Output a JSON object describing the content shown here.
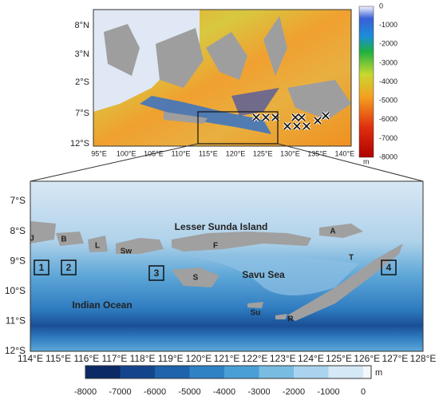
{
  "top_map": {
    "y_labels": [
      "8°N",
      "3°N",
      "2°S",
      "7°S",
      "12°S"
    ],
    "x_labels": [
      "95°E",
      "100°E",
      "105°E",
      "110°E",
      "115°E",
      "120°E",
      "125°E",
      "130°E",
      "135°E",
      "140°E"
    ],
    "colorbar": {
      "labels": [
        "0",
        "-1000",
        "-2000",
        "-3000",
        "-4000",
        "-5000",
        "-6000",
        "-7000",
        "-8000"
      ],
      "unit": "m"
    }
  },
  "bottom_map": {
    "y_labels": [
      "7°S",
      "8°S",
      "9°S",
      "10°S",
      "11°S",
      "12°S"
    ],
    "x_labels": [
      "114°E",
      "115°E",
      "116°E",
      "117°E",
      "118°E",
      "119°E",
      "120°E",
      "121°E",
      "122°E",
      "123°E",
      "124°E",
      "125°E",
      "126°E",
      "127°E",
      "128°E"
    ],
    "regions": [
      "Lesser Sunda Island",
      "Savu Sea",
      "Indian Ocean"
    ],
    "islands": [
      "J",
      "B",
      "L",
      "Sw",
      "F",
      "A",
      "T",
      "S",
      "Su",
      "R"
    ],
    "boxes": [
      "1",
      "2",
      "3",
      "4"
    ],
    "colorbar": {
      "labels": [
        "-8000",
        "-7000",
        "-6000",
        "-5000",
        "-4000",
        "-3000",
        "-2000",
        "-1000",
        "0"
      ],
      "unit": "m"
    }
  }
}
